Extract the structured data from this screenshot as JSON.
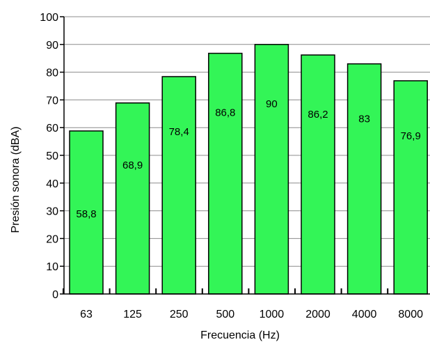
{
  "colors": {
    "bar_fill": "#33F557",
    "bar_stroke": "#000000",
    "gridline": "#8c8c8c",
    "axis": "#000000",
    "background": "#ffffff"
  },
  "chart_data": {
    "type": "bar",
    "title": "",
    "xlabel": "Frecuencia (Hz)",
    "ylabel": "Presión sonora (dBA)",
    "ylim": [
      0,
      100
    ],
    "ytick_step": 10,
    "yticks": [
      "0",
      "10",
      "20",
      "30",
      "40",
      "50",
      "60",
      "70",
      "80",
      "90",
      "100"
    ],
    "grid": "horizontal",
    "categories": [
      "63",
      "125",
      "250",
      "500",
      "1000",
      "2000",
      "4000",
      "8000"
    ],
    "values": [
      58.8,
      68.9,
      78.4,
      86.8,
      90,
      86.2,
      83,
      76.9
    ],
    "value_labels": [
      "58,8",
      "68,9",
      "78,4",
      "86,8",
      "90",
      "86,2",
      "83",
      "76,9"
    ]
  }
}
